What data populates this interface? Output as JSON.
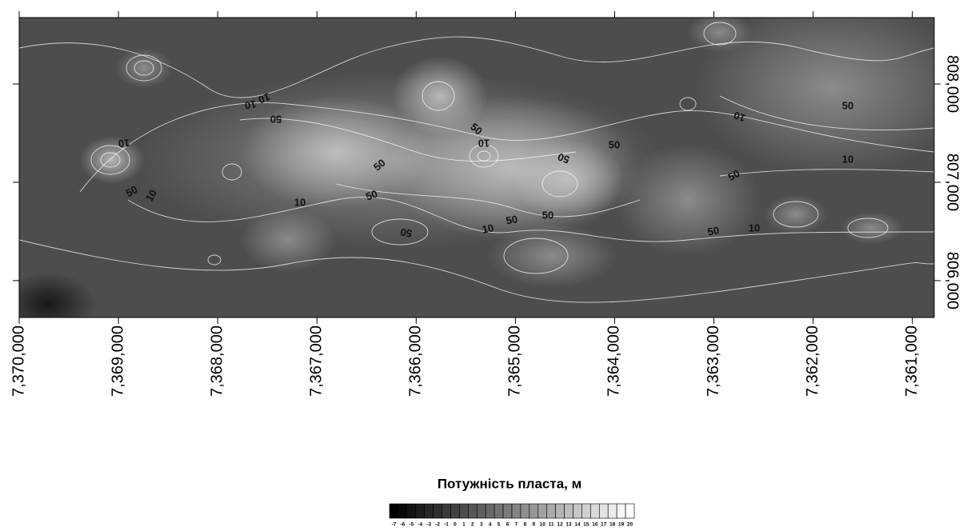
{
  "map": {
    "xlim": [
      7370000,
      7360780
    ],
    "ylim": [
      805625,
      808675
    ],
    "xticks": [
      {
        "value": 7370000,
        "label": "7,370,000"
      },
      {
        "value": 7369000,
        "label": "7,369,000"
      },
      {
        "value": 7368000,
        "label": "7,368,000"
      },
      {
        "value": 7367000,
        "label": "7,367,000"
      },
      {
        "value": 7366000,
        "label": "7,366,000"
      },
      {
        "value": 7365000,
        "label": "7,365,000"
      },
      {
        "value": 7364000,
        "label": "7,364,000"
      },
      {
        "value": 7363000,
        "label": "7,363,000"
      },
      {
        "value": 7362000,
        "label": "7,362,000"
      },
      {
        "value": 7361000,
        "label": "7,361,000"
      }
    ],
    "yticks": [
      {
        "value": 806000,
        "label": "806,000"
      },
      {
        "value": 807000,
        "label": "807,000"
      },
      {
        "value": 808000,
        "label": "808,000"
      }
    ],
    "contour_labels": [
      10,
      10,
      50,
      10,
      50,
      10,
      50,
      10,
      50,
      50,
      50,
      10,
      50,
      50,
      10,
      50,
      50,
      10,
      50,
      50,
      10,
      50,
      10
    ]
  },
  "legend": {
    "title": "Потужність пласта, м",
    "levels": [
      -7,
      -6,
      -5,
      -4,
      -3,
      -2,
      -1,
      0,
      1,
      2,
      3,
      4,
      5,
      6,
      7,
      8,
      9,
      10,
      11,
      12,
      13,
      14,
      15,
      16,
      17,
      18,
      19,
      20
    ]
  }
}
